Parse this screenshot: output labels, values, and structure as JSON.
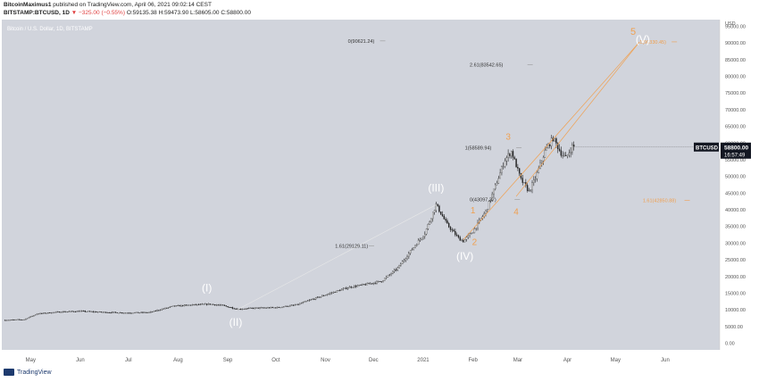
{
  "header": {
    "author": "BitcoinMaximus1",
    "published_text": "published on TradingView.com, April 06, 2021 09:02:14 CEST",
    "symbol": "BITSTAMP:BTCUSD, 1D",
    "change": "▼ −325.00 (−0.55%)",
    "ohlc": "O:59135.38 H:59473.90 L:58605.00 C:58800.00"
  },
  "footer": {
    "brand": "TradingView"
  },
  "colors": {
    "background": "#d1d4dc",
    "candles": "#222222",
    "projection_orange": "#f0a050",
    "fib_line": "#b0b0b0",
    "wave_white": "#ffffff",
    "price_box": "#131722"
  },
  "chart_data": {
    "type": "candlestick",
    "title": "Bitcoin / U.S. Dollar, 1D, BITSTAMP",
    "ylabel": "USD",
    "ylim": [
      -2000,
      97000
    ],
    "y_ticks": [
      0,
      5000,
      10000,
      15000,
      20000,
      25000,
      30000,
      35000,
      40000,
      45000,
      50000,
      55000,
      60000,
      65000,
      70000,
      75000,
      80000,
      85000,
      90000,
      95000
    ],
    "y_tick_labels": [
      "0.00",
      "5000.00",
      "10000.00",
      "15000.00",
      "20000.00",
      "25000.00",
      "30000.00",
      "35000.00",
      "40000.00",
      "45000.00",
      "50000.00",
      "55000.00",
      "60000.00",
      "65000.00",
      "70000.00",
      "75000.00",
      "80000.00",
      "85000.00",
      "90000.00",
      "95000.00"
    ],
    "x_ticks": [
      {
        "label": "May",
        "day": 16
      },
      {
        "label": "Jun",
        "day": 47
      },
      {
        "label": "Jul",
        "day": 77
      },
      {
        "label": "Aug",
        "day": 108
      },
      {
        "label": "Sep",
        "day": 139
      },
      {
        "label": "Oct",
        "day": 169
      },
      {
        "label": "Nov",
        "day": 200
      },
      {
        "label": "Dec",
        "day": 230
      },
      {
        "label": "2021",
        "day": 261
      },
      {
        "label": "Feb",
        "day": 292
      },
      {
        "label": "Mar",
        "day": 320
      },
      {
        "label": "Apr",
        "day": 351
      },
      {
        "label": "May",
        "day": 381
      },
      {
        "label": "Jun",
        "day": 412
      }
    ],
    "x_range": [
      -2,
      446
    ],
    "last_day": 355,
    "current_price": {
      "label": "BTCUSD",
      "value": 58800,
      "value_label": "58800.00",
      "countdown": "16:57:49"
    },
    "price_path": [
      [
        0,
        6900
      ],
      [
        12,
        7100
      ],
      [
        20,
        8800
      ],
      [
        35,
        9400
      ],
      [
        47,
        9600
      ],
      [
        60,
        9300
      ],
      [
        75,
        9100
      ],
      [
        90,
        9200
      ],
      [
        105,
        11100
      ],
      [
        118,
        11500
      ],
      [
        128,
        11700
      ],
      [
        136,
        11300
      ],
      [
        145,
        10200
      ],
      [
        155,
        10500
      ],
      [
        170,
        10700
      ],
      [
        182,
        11500
      ],
      [
        192,
        13200
      ],
      [
        205,
        15300
      ],
      [
        215,
        16800
      ],
      [
        225,
        17600
      ],
      [
        235,
        18600
      ],
      [
        245,
        22500
      ],
      [
        255,
        28800
      ],
      [
        262,
        33000
      ],
      [
        269,
        41500
      ],
      [
        276,
        35500
      ],
      [
        283,
        31500
      ],
      [
        286,
        30600
      ],
      [
        292,
        33500
      ],
      [
        300,
        39500
      ],
      [
        306,
        47000
      ],
      [
        312,
        55000
      ],
      [
        316,
        57500
      ],
      [
        322,
        49000
      ],
      [
        327,
        45500
      ],
      [
        331,
        49500
      ],
      [
        337,
        57500
      ],
      [
        342,
        61500
      ],
      [
        347,
        57000
      ],
      [
        350,
        55500
      ],
      [
        354,
        59000
      ],
      [
        357,
        58800
      ]
    ],
    "waves": [
      {
        "label": "(I)",
        "day": 126,
        "value": 15500,
        "color": "white",
        "size": 12
      },
      {
        "label": "(II)",
        "day": 144,
        "value": 5200,
        "color": "white",
        "size": 12
      },
      {
        "label": "(III)",
        "day": 269,
        "value": 45500,
        "color": "white",
        "size": 12
      },
      {
        "label": "(IV)",
        "day": 287,
        "value": 25000,
        "color": "white",
        "size": 12
      },
      {
        "label": "1",
        "day": 292,
        "value": 39000,
        "color": "orange",
        "size": 10
      },
      {
        "label": "2",
        "day": 293,
        "value": 29500,
        "color": "orange",
        "size": 10
      },
      {
        "label": "3",
        "day": 314,
        "value": 61000,
        "color": "orange",
        "size": 10
      },
      {
        "label": "4",
        "day": 319,
        "value": 38500,
        "color": "orange",
        "size": 10
      },
      {
        "label": "5",
        "day": 392,
        "value": 92500,
        "color": "orange",
        "size": 11
      },
      {
        "label": "(V)",
        "day": 398,
        "value": 90000,
        "color": "white",
        "size": 12
      }
    ],
    "fib_levels": [
      {
        "label": "0(90621.24)",
        "day": 214,
        "value": 90621,
        "x2": 234,
        "color": "gray"
      },
      {
        "label": "2.61(83542.65)",
        "day": 290,
        "value": 83542,
        "x2": 326,
        "color": "gray"
      },
      {
        "label": "1(58589.94)",
        "day": 287,
        "value": 58590,
        "x2": 319,
        "color": "gray"
      },
      {
        "label": "0(43097.37)",
        "day": 290,
        "value": 43097,
        "x2": 318,
        "color": "gray"
      },
      {
        "label": "1.61(29129.11)",
        "day": 206,
        "value": 29129,
        "x2": 227,
        "color": "gray"
      },
      {
        "label": "1(90330.45)",
        "day": 396,
        "value": 90330,
        "x2": 416,
        "color": "orange"
      },
      {
        "label": "1.61(42850.88)",
        "day": 398,
        "value": 42850,
        "x2": 424,
        "color": "orange"
      }
    ],
    "fib_lines": [
      {
        "from": [
          144,
          9800
        ],
        "to": [
          269,
          41500
        ],
        "color": "gray"
      }
    ],
    "projection_lines": [
      {
        "from": [
          286,
          31000
        ],
        "to": [
          396,
          90330
        ],
        "color": "orange"
      },
      {
        "from": [
          319,
          44000
        ],
        "to": [
          396,
          90330
        ],
        "color": "orange"
      }
    ]
  }
}
